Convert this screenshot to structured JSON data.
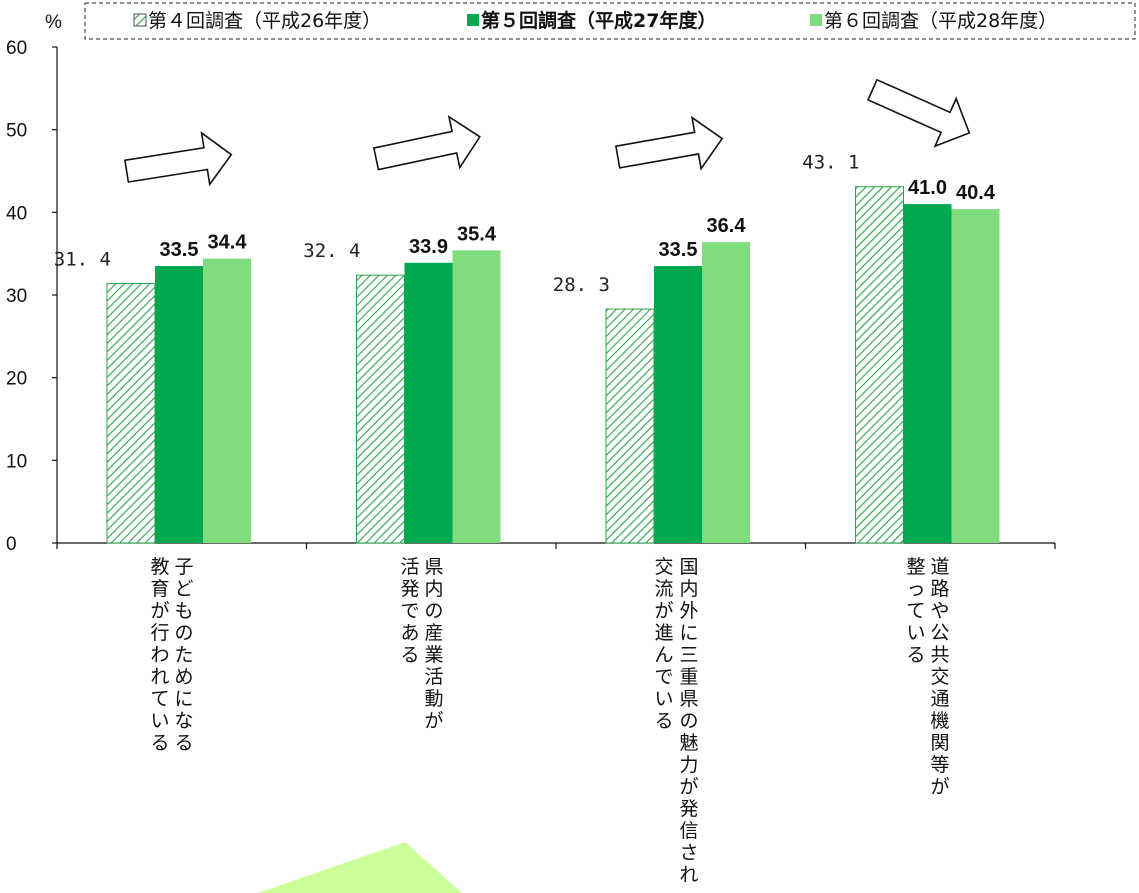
{
  "chart_data": {
    "type": "bar",
    "ylabel": "%",
    "ylim": [
      0,
      60
    ],
    "yticks": [
      "0",
      "10",
      "20",
      "30",
      "40",
      "50",
      "60"
    ],
    "categories": [
      [
        "子どものためになる",
        "教育が行われている"
      ],
      [
        "県内の産業活動が",
        "活発である"
      ],
      [
        "国内外に三重県の魅力が発信され、",
        "交流が進んでいる"
      ],
      [
        "道路や公共交通機関等が",
        "整っている"
      ]
    ],
    "series": [
      {
        "name": "第４回調査（平成26年度）",
        "values": [
          31.4,
          32.4,
          28.3,
          43.1
        ],
        "labels": [
          "31. 4",
          "32. 4",
          "28. 3",
          "43. 1"
        ],
        "color": "#2aa34a",
        "pattern": "hatch"
      },
      {
        "name": "第５回調査（平成27年度）",
        "values": [
          33.5,
          33.9,
          33.5,
          41.0
        ],
        "labels": [
          "33.5",
          "33.9",
          "33.5",
          "41.0"
        ],
        "color": "#00a84f",
        "pattern": "solid"
      },
      {
        "name": "第６回調査（平成28年度）",
        "values": [
          34.4,
          35.4,
          36.4,
          40.4
        ],
        "labels": [
          "34.4",
          "35.4",
          "36.4",
          "40.4"
        ],
        "color": "#7fdc7f",
        "pattern": "solid"
      }
    ],
    "grid": false,
    "legend": "top",
    "annotations": [
      "increase-arrow",
      "increase-arrow",
      "increase-arrow",
      "increase-arrow"
    ]
  },
  "colors": {
    "axis": "#111111",
    "hatch_line": "#2aa34a",
    "arrow_fill": "#ffffff",
    "arrow_stroke": "#111111",
    "corner_shape": "#ccff99"
  }
}
